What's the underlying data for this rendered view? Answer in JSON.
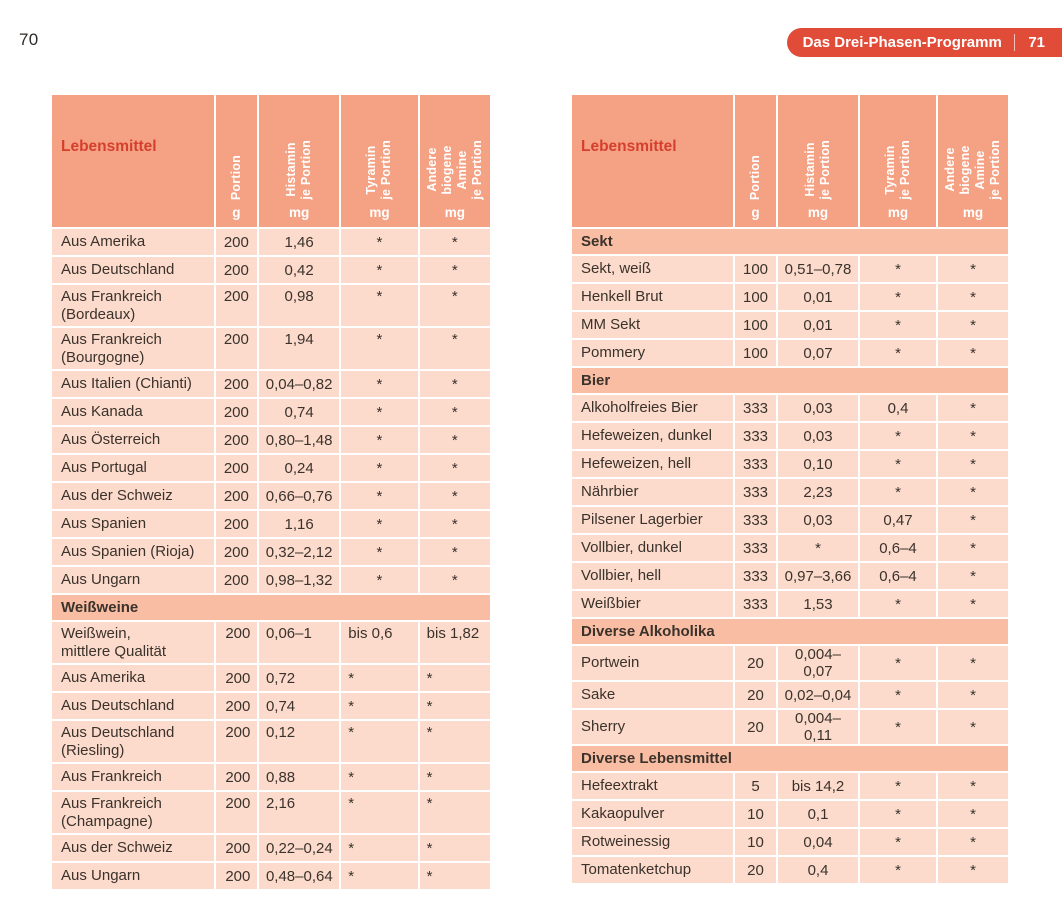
{
  "page": {
    "left_page_number": "70",
    "badge": {
      "title": "Das Drei-Phasen-Programm",
      "page_number": "71"
    }
  },
  "colors": {
    "badge_red": "#e14c38",
    "header_label_red": "#d5402e",
    "table_header_bg": "#f5a284",
    "section_row_bg": "#f9bda3",
    "data_row_bg": "#fcdbcc",
    "body_text": "#3a322b"
  },
  "table_header": {
    "lebensmittel": "Lebensmittel",
    "columns": [
      {
        "name": "portion",
        "label": "Portion",
        "unit": "g"
      },
      {
        "name": "histamin",
        "label": "Histamin\nje Portion",
        "unit": "mg"
      },
      {
        "name": "tyramin",
        "label": "Tyramin\nje Portion",
        "unit": "mg"
      },
      {
        "name": "andere-biogene-amine",
        "label": "Andere\nbiogene\nAmine\nje Portion",
        "unit": "mg"
      }
    ]
  },
  "tables": [
    {
      "id": "left-table",
      "rows": [
        {
          "type": "data",
          "food": "Aus Amerika",
          "portion": "200",
          "histamin": "1,46",
          "tyramin": "*",
          "andere": "*"
        },
        {
          "type": "data",
          "food": "Aus Deutschland",
          "portion": "200",
          "histamin": "0,42",
          "tyramin": "*",
          "andere": "*"
        },
        {
          "type": "data",
          "food": "Aus Frankreich\n(Bordeaux)",
          "portion": "200",
          "histamin": "0,98",
          "tyramin": "*",
          "andere": "*"
        },
        {
          "type": "data",
          "food": "Aus Frankreich\n(Bourgogne)",
          "portion": "200",
          "histamin": "1,94",
          "tyramin": "*",
          "andere": "*"
        },
        {
          "type": "data",
          "food": "Aus Italien (Chianti)",
          "portion": "200",
          "histamin": "0,04–0,82",
          "tyramin": "*",
          "andere": "*"
        },
        {
          "type": "data",
          "food": "Aus Kanada",
          "portion": "200",
          "histamin": "0,74",
          "tyramin": "*",
          "andere": "*"
        },
        {
          "type": "data",
          "food": "Aus Österreich",
          "portion": "200",
          "histamin": "0,80–1,48",
          "tyramin": "*",
          "andere": "*"
        },
        {
          "type": "data",
          "food": "Aus Portugal",
          "portion": "200",
          "histamin": "0,24",
          "tyramin": "*",
          "andere": "*"
        },
        {
          "type": "data",
          "food": "Aus der Schweiz",
          "portion": "200",
          "histamin": "0,66–0,76",
          "tyramin": "*",
          "andere": "*"
        },
        {
          "type": "data",
          "food": "Aus Spanien",
          "portion": "200",
          "histamin": "1,16",
          "tyramin": "*",
          "andere": "*"
        },
        {
          "type": "data",
          "food": "Aus Spanien (Rioja)",
          "portion": "200",
          "histamin": "0,32–2,12",
          "tyramin": "*",
          "andere": "*"
        },
        {
          "type": "data",
          "food": "Aus Ungarn",
          "portion": "200",
          "histamin": "0,98–1,32",
          "tyramin": "*",
          "andere": "*"
        },
        {
          "type": "section",
          "label": "Weißweine"
        },
        {
          "type": "data",
          "align": "left",
          "food": "Weißwein,\nmittlere Qualität",
          "portion": "200",
          "histamin": "0,06–1",
          "tyramin": "bis 0,6",
          "andere": "bis 1,82"
        },
        {
          "type": "data",
          "align": "left",
          "food": "Aus Amerika",
          "portion": "200",
          "histamin": "0,72",
          "tyramin": "*",
          "andere": "*"
        },
        {
          "type": "data",
          "align": "left",
          "food": "Aus Deutschland",
          "portion": "200",
          "histamin": "0,74",
          "tyramin": "*",
          "andere": "*"
        },
        {
          "type": "data",
          "align": "left",
          "food": "Aus Deutschland\n(Riesling)",
          "portion": "200",
          "histamin": "0,12",
          "tyramin": "*",
          "andere": "*"
        },
        {
          "type": "data",
          "align": "left",
          "food": "Aus Frankreich",
          "portion": "200",
          "histamin": "0,88",
          "tyramin": "*",
          "andere": "*"
        },
        {
          "type": "data",
          "align": "left",
          "food": "Aus Frankreich\n(Champagne)",
          "portion": "200",
          "histamin": "2,16",
          "tyramin": "*",
          "andere": "*"
        },
        {
          "type": "data",
          "align": "left",
          "food": "Aus der Schweiz",
          "portion": "200",
          "histamin": "0,22–0,24",
          "tyramin": "*",
          "andere": "*"
        },
        {
          "type": "data",
          "align": "left",
          "food": "Aus Ungarn",
          "portion": "200",
          "histamin": "0,48–0,64",
          "tyramin": "*",
          "andere": "*"
        }
      ]
    },
    {
      "id": "right-table",
      "rows": [
        {
          "type": "section",
          "label": "Sekt"
        },
        {
          "type": "data",
          "food": "Sekt, weiß",
          "portion": "100",
          "histamin": "0,51–0,78",
          "tyramin": "*",
          "andere": "*"
        },
        {
          "type": "data",
          "food": "Henkell Brut",
          "portion": "100",
          "histamin": "0,01",
          "tyramin": "*",
          "andere": "*"
        },
        {
          "type": "data",
          "food": "MM Sekt",
          "portion": "100",
          "histamin": "0,01",
          "tyramin": "*",
          "andere": "*"
        },
        {
          "type": "data",
          "food": "Pommery",
          "portion": "100",
          "histamin": "0,07",
          "tyramin": "*",
          "andere": "*"
        },
        {
          "type": "section",
          "label": "Bier"
        },
        {
          "type": "data",
          "food": "Alkoholfreies Bier",
          "portion": "333",
          "histamin": "0,03",
          "tyramin": "0,4",
          "andere": "*"
        },
        {
          "type": "data",
          "food": "Hefeweizen, dunkel",
          "portion": "333",
          "histamin": "0,03",
          "tyramin": "*",
          "andere": "*"
        },
        {
          "type": "data",
          "food": "Hefeweizen, hell",
          "portion": "333",
          "histamin": "0,10",
          "tyramin": "*",
          "andere": "*"
        },
        {
          "type": "data",
          "food": "Nährbier",
          "portion": "333",
          "histamin": "2,23",
          "tyramin": "*",
          "andere": "*"
        },
        {
          "type": "data",
          "food": "Pilsener Lagerbier",
          "portion": "333",
          "histamin": "0,03",
          "tyramin": "0,47",
          "andere": "*"
        },
        {
          "type": "data",
          "food": "Vollbier, dunkel",
          "portion": "333",
          "histamin": "*",
          "tyramin": "0,6–4",
          "andere": "*"
        },
        {
          "type": "data",
          "food": "Vollbier, hell",
          "portion": "333",
          "histamin": "0,97–3,66",
          "tyramin": "0,6–4",
          "andere": "*"
        },
        {
          "type": "data",
          "food": "Weißbier",
          "portion": "333",
          "histamin": "1,53",
          "tyramin": "*",
          "andere": "*"
        },
        {
          "type": "section",
          "label": "Diverse Alkoholika"
        },
        {
          "type": "data",
          "food": "Portwein",
          "portion": "20",
          "histamin": "0,004–0,07",
          "tyramin": "*",
          "andere": "*"
        },
        {
          "type": "data",
          "food": "Sake",
          "portion": "20",
          "histamin": "0,02–0,04",
          "tyramin": "*",
          "andere": "*"
        },
        {
          "type": "data",
          "food": "Sherry",
          "portion": "20",
          "histamin": "0,004–0,11",
          "tyramin": "*",
          "andere": "*"
        },
        {
          "type": "section",
          "label": "Diverse Lebensmittel"
        },
        {
          "type": "data",
          "food": "Hefeextrakt",
          "portion": "5",
          "histamin": "bis 14,2",
          "tyramin": "*",
          "andere": "*"
        },
        {
          "type": "data",
          "food": "Kakaopulver",
          "portion": "10",
          "histamin": "0,1",
          "tyramin": "*",
          "andere": "*"
        },
        {
          "type": "data",
          "food": "Rotweinessig",
          "portion": "10",
          "histamin": "0,04",
          "tyramin": "*",
          "andere": "*"
        },
        {
          "type": "data",
          "food": "Tomatenketchup",
          "portion": "20",
          "histamin": "0,4",
          "tyramin": "*",
          "andere": "*"
        }
      ]
    }
  ]
}
